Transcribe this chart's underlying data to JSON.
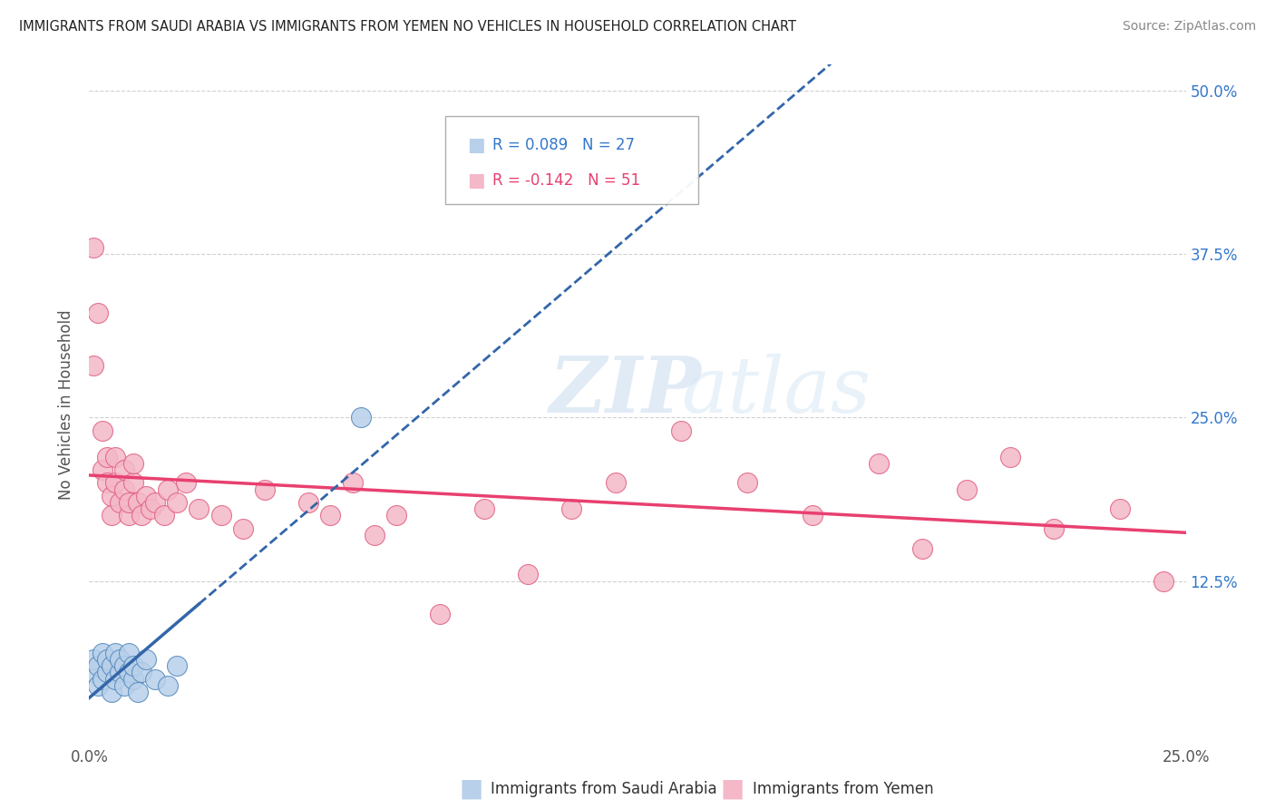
{
  "title": "IMMIGRANTS FROM SAUDI ARABIA VS IMMIGRANTS FROM YEMEN NO VEHICLES IN HOUSEHOLD CORRELATION CHART",
  "source": "Source: ZipAtlas.com",
  "ylabel": "No Vehicles in Household",
  "right_yticklabels": [
    "",
    "12.5%",
    "25.0%",
    "37.5%",
    "50.0%"
  ],
  "right_yticks": [
    0.0,
    0.125,
    0.25,
    0.375,
    0.5
  ],
  "legend_blue_r": "R = 0.089",
  "legend_blue_n": "N = 27",
  "legend_pink_r": "R = -0.142",
  "legend_pink_n": "N = 51",
  "legend_label_blue": "Immigrants from Saudi Arabia",
  "legend_label_pink": "Immigrants from Yemen",
  "color_blue_fill": "#b8d0ea",
  "color_blue_edge": "#5588bb",
  "color_pink_fill": "#f4b8c8",
  "color_pink_edge": "#e06080",
  "color_blue_line": "#3366aa",
  "color_pink_line": "#e84070",
  "color_blue_text": "#3377cc",
  "color_pink_text": "#e84070",
  "watermark_zip": "ZIP",
  "watermark_atlas": "atlas",
  "xlim": [
    0.0,
    0.25
  ],
  "ylim": [
    0.0,
    0.52
  ],
  "bg_color": "#ffffff",
  "grid_color": "#cccccc",
  "blue_x": [
    0.001,
    0.001,
    0.002,
    0.002,
    0.003,
    0.003,
    0.004,
    0.004,
    0.005,
    0.005,
    0.006,
    0.006,
    0.007,
    0.007,
    0.008,
    0.008,
    0.009,
    0.009,
    0.01,
    0.01,
    0.011,
    0.012,
    0.013,
    0.015,
    0.018,
    0.062,
    0.02
  ],
  "blue_y": [
    0.055,
    0.065,
    0.045,
    0.06,
    0.05,
    0.07,
    0.055,
    0.065,
    0.06,
    0.04,
    0.05,
    0.07,
    0.055,
    0.065,
    0.045,
    0.06,
    0.055,
    0.07,
    0.05,
    0.06,
    0.04,
    0.055,
    0.065,
    0.05,
    0.045,
    0.25,
    0.06
  ],
  "pink_x": [
    0.001,
    0.001,
    0.002,
    0.003,
    0.003,
    0.004,
    0.004,
    0.005,
    0.005,
    0.006,
    0.006,
    0.007,
    0.008,
    0.008,
    0.009,
    0.009,
    0.01,
    0.01,
    0.011,
    0.012,
    0.013,
    0.014,
    0.015,
    0.017,
    0.018,
    0.02,
    0.022,
    0.025,
    0.03,
    0.035,
    0.04,
    0.05,
    0.055,
    0.06,
    0.065,
    0.07,
    0.08,
    0.09,
    0.1,
    0.11,
    0.12,
    0.135,
    0.15,
    0.165,
    0.18,
    0.19,
    0.2,
    0.21,
    0.22,
    0.235,
    0.245
  ],
  "pink_y": [
    0.38,
    0.29,
    0.33,
    0.24,
    0.21,
    0.2,
    0.22,
    0.19,
    0.175,
    0.2,
    0.22,
    0.185,
    0.195,
    0.21,
    0.175,
    0.185,
    0.2,
    0.215,
    0.185,
    0.175,
    0.19,
    0.18,
    0.185,
    0.175,
    0.195,
    0.185,
    0.2,
    0.18,
    0.175,
    0.165,
    0.195,
    0.185,
    0.175,
    0.2,
    0.16,
    0.175,
    0.1,
    0.18,
    0.13,
    0.18,
    0.2,
    0.24,
    0.2,
    0.175,
    0.215,
    0.15,
    0.195,
    0.22,
    0.165,
    0.18,
    0.125
  ],
  "dot_size": 250
}
